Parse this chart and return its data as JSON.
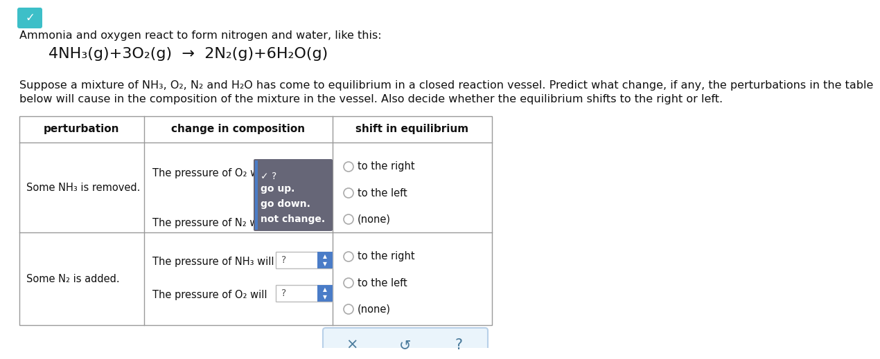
{
  "bg_color": "#ffffff",
  "title_line1": "Ammonia and oxygen react to form nitrogen and water, like this:",
  "equation": "4NH₃(g)+3O₂(g)  →  2N₂(g)+6H₂O(g)",
  "body_text_line1": "Suppose a mixture of NH₃, O₂, N₂ and H₂O has come to equilibrium in a closed reaction vessel. Predict what change, if any, the perturbations in the table",
  "body_text_line2": "below will cause in the composition of the mixture in the vessel. Also decide whether the equilibrium shifts to the right or left.",
  "col_headers": [
    "perturbation",
    "change in composition",
    "shift in equilibrium"
  ],
  "row1_perturbation": "Some NH₃ is removed.",
  "row1_comp1": "The pressure of O₂ will",
  "row1_comp2": "The pressure of N₂ will",
  "row1_dropdown_first": "✓ ?",
  "row1_dropdown_options": [
    "go up.",
    "go down.",
    "not change."
  ],
  "row1_shift_options": [
    "to the right",
    "to the left",
    "(none)"
  ],
  "row2_perturbation": "Some N₂ is added.",
  "row2_comp1": "The pressure of NH₃ will",
  "row2_comp2": "The pressure of O₂ will",
  "row2_dd1_text": "?",
  "row2_dd2_text": "?",
  "row2_shift_options": [
    "to the right",
    "to the left",
    "(none)"
  ],
  "footer_buttons": [
    "×",
    "↺",
    "?"
  ],
  "teal_color": "#3dbfc8",
  "dropdown_bg": "#666677",
  "dropdown_border": "#4a7cc7",
  "dd2_arrow_color": "#4a7cc7",
  "radio_border": "#aaaaaa",
  "table_border": "#999999"
}
